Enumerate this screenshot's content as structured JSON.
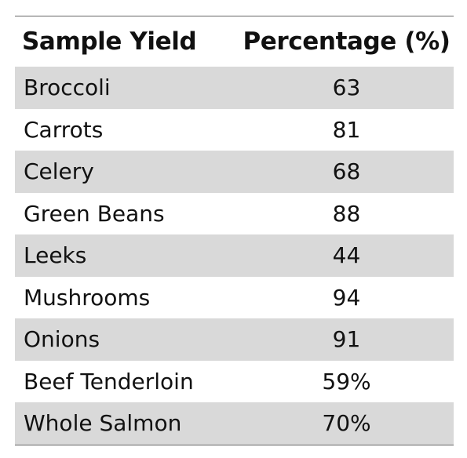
{
  "table": {
    "headers": [
      "Sample Yield",
      "Percentage (%)"
    ],
    "rows": [
      [
        "Broccoli",
        "63"
      ],
      [
        "Carrots",
        "81"
      ],
      [
        "Celery",
        "68"
      ],
      [
        "Green Beans",
        "88"
      ],
      [
        "Leeks",
        "44"
      ],
      [
        "Mushrooms",
        "94"
      ],
      [
        "Onions",
        "91"
      ],
      [
        "Beef Tenderloin",
        "59%"
      ],
      [
        "Whole Salmon",
        "70%"
      ]
    ],
    "shaded_row_color": "#d9d9d9",
    "rule_color": "#666666"
  }
}
